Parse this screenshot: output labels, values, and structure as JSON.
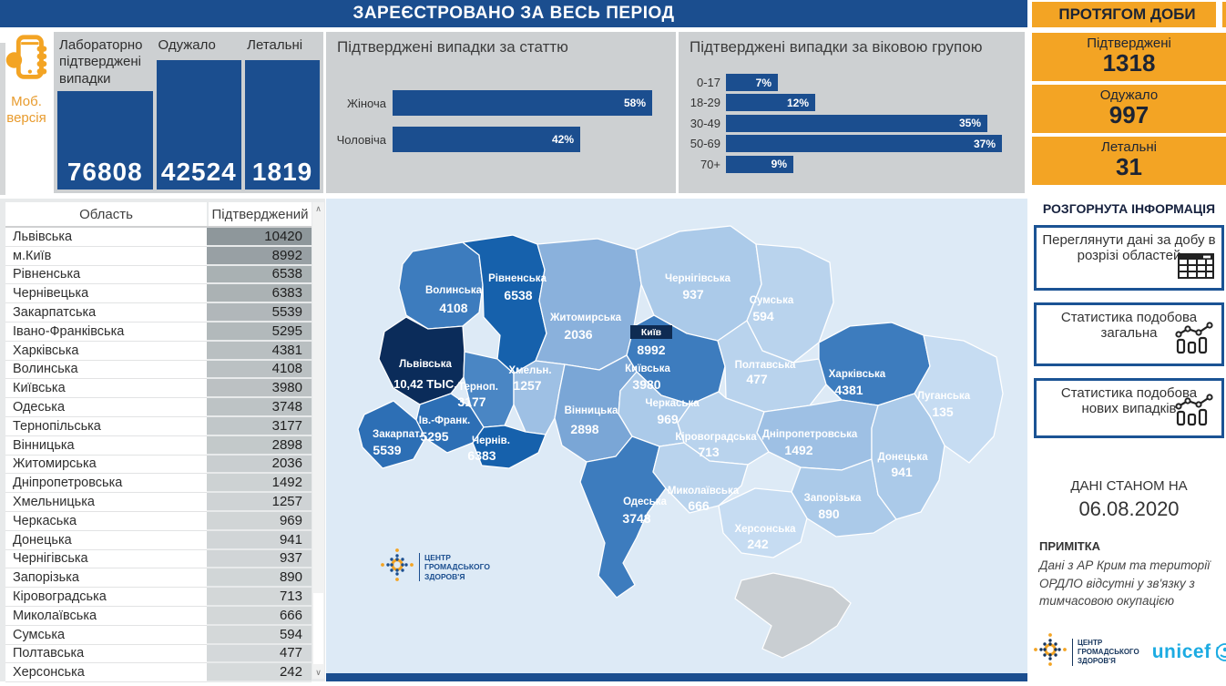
{
  "header": {
    "main_title": "ЗАРЕЄСТРОВАНО ЗА ВЕСЬ ПЕРІОД",
    "daily_title": "ПРОТЯГОМ ДОБИ"
  },
  "mobile": {
    "line1": "Моб.",
    "line2": "версія"
  },
  "kpi_total": [
    {
      "label": "Лабораторно підтверджені випадки",
      "value": "76808"
    },
    {
      "label": "Одужало",
      "value": "42524"
    },
    {
      "label": "Летальні",
      "value": "1819"
    }
  ],
  "chart_data": [
    {
      "type": "bar",
      "orientation": "horizontal",
      "title": "Підтверджені випадки за статтю",
      "categories": [
        "Жіноча",
        "Чоловіча"
      ],
      "values": [
        58,
        42
      ],
      "unit": "%",
      "xlim": [
        0,
        60
      ],
      "grid": false,
      "bar_color": "#1b4e8f"
    },
    {
      "type": "bar",
      "orientation": "horizontal",
      "title": "Підтверджені випадки за віковою групою",
      "categories": [
        "0-17",
        "18-29",
        "30-49",
        "50-69",
        "70+"
      ],
      "values": [
        7,
        12,
        35,
        37,
        9
      ],
      "unit": "%",
      "xlim": [
        0,
        40
      ],
      "grid": false,
      "bar_color": "#1b4e8f"
    }
  ],
  "daily": [
    {
      "label": "Підтверджені",
      "value": "1318"
    },
    {
      "label": "Одужало",
      "value": "997"
    },
    {
      "label": "Летальні",
      "value": "31"
    }
  ],
  "details": {
    "title": "РОЗГОРНУТА ІНФОРМАЦІЯ",
    "buttons": [
      {
        "label": "Переглянути дані за добу в розрізі областей",
        "icon": "table-icon"
      },
      {
        "label": "Статистика подобова загальна",
        "icon": "chart-icon"
      },
      {
        "label": "Статистика подобова нових випадків",
        "icon": "chart-icon"
      }
    ],
    "as_of_label": "ДАНІ СТАНОМ НА",
    "as_of_date": "06.08.2020",
    "note_title": "ПРИМІТКА",
    "note_text": "Дані з АР Крим та території ОРДЛО відсутні у зв'язку з тимчасовою окупацією"
  },
  "table": {
    "columns": [
      "Область",
      "Підтверджений"
    ],
    "rows": [
      [
        "Львівська",
        10420
      ],
      [
        "м.Київ",
        8992
      ],
      [
        "Рівненська",
        6538
      ],
      [
        "Чернівецька",
        6383
      ],
      [
        "Закарпатська",
        5539
      ],
      [
        "Івано-Франківська",
        5295
      ],
      [
        "Харківська",
        4381
      ],
      [
        "Волинська",
        4108
      ],
      [
        "Київська",
        3980
      ],
      [
        "Одеська",
        3748
      ],
      [
        "Тернопільська",
        3177
      ],
      [
        "Вінницька",
        2898
      ],
      [
        "Житомирська",
        2036
      ],
      [
        "Дніпропетровська",
        1492
      ],
      [
        "Хмельницька",
        1257
      ],
      [
        "Черкаська",
        969
      ],
      [
        "Донецька",
        941
      ],
      [
        "Чернігівська",
        937
      ],
      [
        "Запорізька",
        890
      ],
      [
        "Кіровоградська",
        713
      ],
      [
        "Миколаївська",
        666
      ],
      [
        "Сумська",
        594
      ],
      [
        "Полтавська",
        477
      ],
      [
        "Херсонська",
        242
      ]
    ]
  },
  "map": {
    "regions": [
      {
        "name": "Волинська",
        "value": "4108",
        "n": 4108
      },
      {
        "name": "Рівненська",
        "value": "6538",
        "n": 6538
      },
      {
        "name": "Житомирська",
        "value": "2036",
        "n": 2036
      },
      {
        "name": "Чернігівська",
        "value": "937",
        "n": 937
      },
      {
        "name": "Сумська",
        "value": "594",
        "n": 594
      },
      {
        "name": "Київ",
        "value": "8992",
        "n": 8992
      },
      {
        "name": "Київська",
        "value": "3980",
        "n": 3980
      },
      {
        "name": "Полтавська",
        "value": "477",
        "n": 477
      },
      {
        "name": "Харківська",
        "value": "4381",
        "n": 4381
      },
      {
        "name": "Луганська",
        "value": "135",
        "n": 135
      },
      {
        "name": "Львівська",
        "value": "10,42 ТЫС.",
        "n": 10420
      },
      {
        "name": "Терноп.",
        "value": "3177",
        "n": 3177
      },
      {
        "name": "Хмельн.",
        "value": "1257",
        "n": 1257
      },
      {
        "name": "Вінницька",
        "value": "2898",
        "n": 2898
      },
      {
        "name": "Черкаська",
        "value": "969",
        "n": 969
      },
      {
        "name": "Кіровоградська",
        "value": "713",
        "n": 713
      },
      {
        "name": "Дніпропетровська",
        "value": "1492",
        "n": 1492
      },
      {
        "name": "Запорізька",
        "value": "890",
        "n": 890
      },
      {
        "name": "Донецька",
        "value": "941",
        "n": 941
      },
      {
        "name": "Ів.-Франк.",
        "value": "5295",
        "n": 5295
      },
      {
        "name": "Закарпат.",
        "value": "5539",
        "n": 5539
      },
      {
        "name": "Чернів.",
        "value": "6383",
        "n": 6383
      },
      {
        "name": "Одеська",
        "value": "3748",
        "n": 3748
      },
      {
        "name": "Миколаївська",
        "value": "666",
        "n": 666
      },
      {
        "name": "Херсонська",
        "value": "242",
        "n": 242
      }
    ]
  },
  "footer": {
    "org_lines": [
      "ЦЕНТР",
      "ГРОМАДСЬКОГО",
      "ЗДОРОВ'Я"
    ],
    "partner": "unicef"
  },
  "ui": {
    "scroll_up": "∧",
    "scroll_down": "∨"
  },
  "colors": {
    "navy": "#1b4e8f",
    "dark_navy": "#0e2b52",
    "orange": "#f3a424",
    "panel_gray": "#cdd0d2",
    "map_background": "#ddeaf6",
    "crimea_gray": "#c9ced2",
    "unicef_blue": "#1cabe2"
  }
}
